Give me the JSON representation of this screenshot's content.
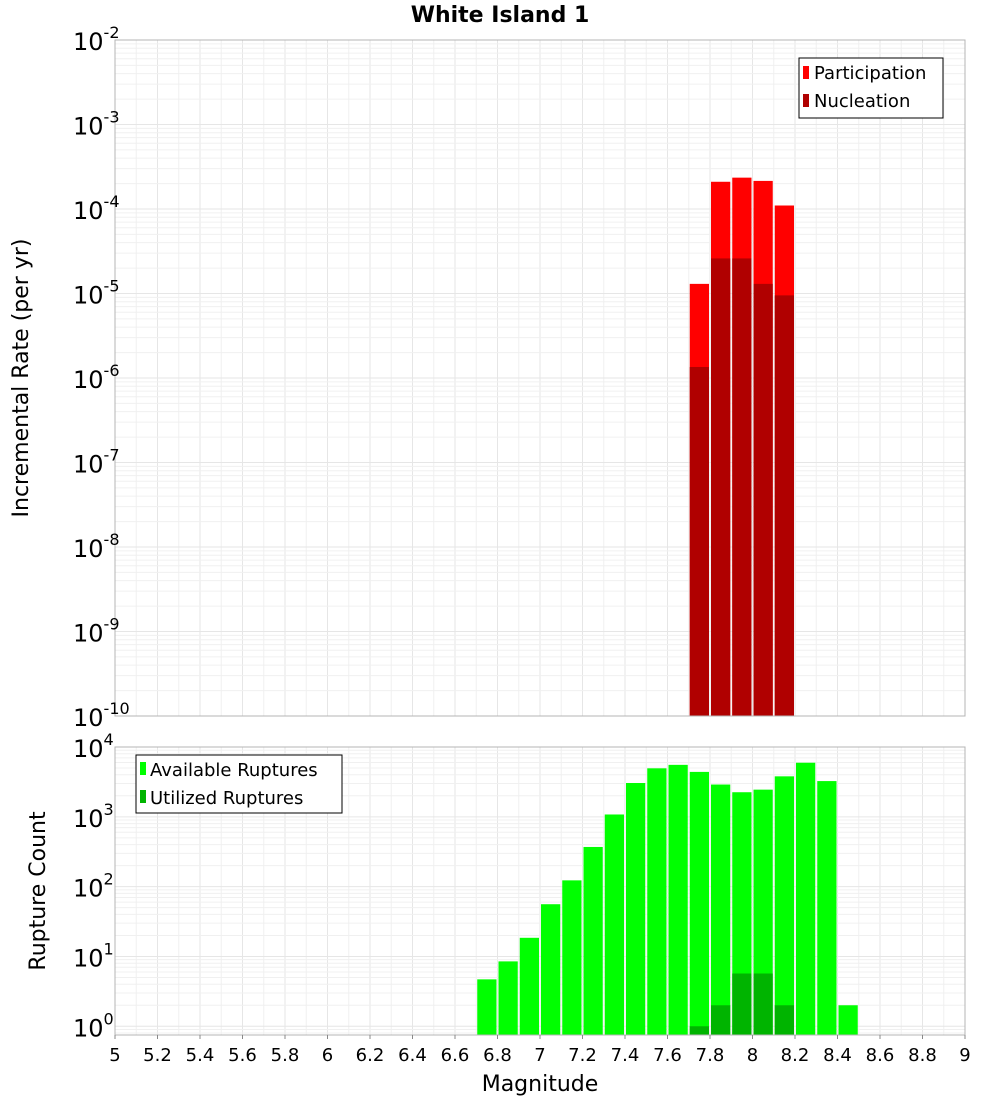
{
  "chart_data": [
    {
      "type": "bar",
      "title": "White Island 1",
      "xlabel": "Magnitude",
      "ylabel": "Incremental Rate (per yr)",
      "yscale": "log",
      "ylim": [
        1e-10,
        0.01
      ],
      "xlim": [
        5,
        9
      ],
      "grid": true,
      "legend_position": "top-right",
      "bar_width": 0.1,
      "series": [
        {
          "name": "Participation",
          "color": "#ff0000",
          "x": [
            7.75,
            7.85,
            7.95,
            8.05,
            8.15
          ],
          "values": [
            1.3e-05,
            0.00021,
            0.000235,
            0.000215,
            0.00011
          ]
        },
        {
          "name": "Nucleation",
          "color": "#b00000",
          "x": [
            7.75,
            7.85,
            7.95,
            8.05,
            8.15
          ],
          "values": [
            1.35e-06,
            2.6e-05,
            2.6e-05,
            1.3e-05,
            9.5e-06
          ]
        }
      ],
      "yticks": [
        {
          "base": "10",
          "exp": "-2"
        },
        {
          "base": "10",
          "exp": "-3"
        },
        {
          "base": "10",
          "exp": "-4"
        },
        {
          "base": "10",
          "exp": "-5"
        },
        {
          "base": "10",
          "exp": "-6"
        },
        {
          "base": "10",
          "exp": "-7"
        },
        {
          "base": "10",
          "exp": "-8"
        },
        {
          "base": "10",
          "exp": "-9"
        },
        {
          "base": "10",
          "exp": "-10"
        }
      ]
    },
    {
      "type": "bar",
      "xlabel": "Magnitude",
      "ylabel": "Rupture Count",
      "yscale": "log",
      "ylim": [
        0.75,
        10000
      ],
      "xlim": [
        5,
        9
      ],
      "grid": true,
      "legend_position": "top-left",
      "bar_width": 0.1,
      "series": [
        {
          "name": "Available Ruptures",
          "color": "#00ff00",
          "x": [
            6.75,
            6.85,
            6.95,
            7.05,
            7.15,
            7.25,
            7.35,
            7.45,
            7.55,
            7.65,
            7.75,
            7.85,
            7.95,
            8.05,
            8.15,
            8.25,
            8.35,
            8.45
          ],
          "values": [
            4.7,
            8.5,
            18.5,
            56,
            123,
            370,
            1080,
            3050,
            4950,
            5550,
            4400,
            2900,
            2250,
            2450,
            3800,
            5950,
            3250,
            2
          ]
        },
        {
          "name": "Utilized Ruptures",
          "color": "#00b400",
          "x": [
            7.75,
            7.85,
            7.95,
            8.05,
            8.15
          ],
          "values": [
            1,
            2,
            5.7,
            5.7,
            2
          ]
        }
      ],
      "yticks": [
        {
          "base": "10",
          "exp": "4"
        },
        {
          "base": "10",
          "exp": "3"
        },
        {
          "base": "10",
          "exp": "2"
        },
        {
          "base": "10",
          "exp": "1"
        },
        {
          "base": "10",
          "exp": "0"
        }
      ],
      "xticks": [
        "5",
        "5.2",
        "5.4",
        "5.6",
        "5.8",
        "6",
        "6.2",
        "6.4",
        "6.6",
        "6.8",
        "7",
        "7.2",
        "7.4",
        "7.6",
        "7.8",
        "8",
        "8.2",
        "8.4",
        "8.6",
        "8.8",
        "9"
      ]
    }
  ]
}
